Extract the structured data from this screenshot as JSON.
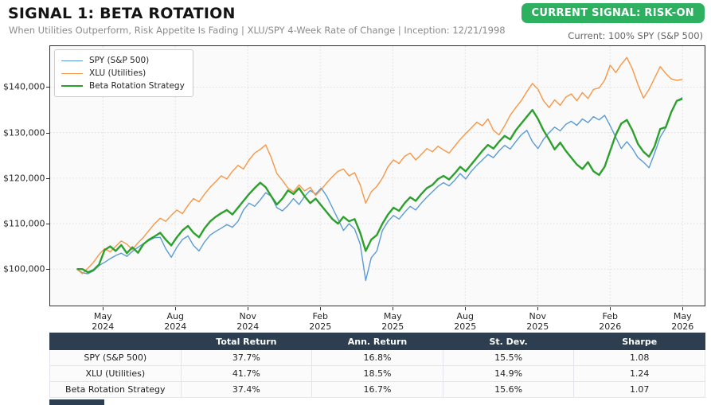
{
  "header": {
    "title": "SIGNAL 1: BETA ROTATION",
    "subtitle": "When Utilities Outperform, Risk Appetite Is Fading | XLU/SPY 4-Week Rate of Change | Inception: 12/21/1998",
    "signal_badge": "CURRENT SIGNAL: RISK-ON",
    "current_allocation": "Current: 100% SPY (S&P 500)",
    "badge_color": "#2db05f"
  },
  "chart_data": {
    "type": "line",
    "title": "",
    "xlabel": "",
    "ylabel": "",
    "x_unit": "weeks",
    "grid": true,
    "legend_position": "upper-left",
    "xlim": [
      -4.8,
      113.0
    ],
    "ylim_thousands": [
      92,
      149
    ],
    "y_ticks": [
      {
        "value": 100,
        "label": "$100,000"
      },
      {
        "value": 110,
        "label": "$110,000"
      },
      {
        "value": 120,
        "label": "$120,000"
      },
      {
        "value": 130,
        "label": "$130,000"
      },
      {
        "value": 140,
        "label": "$140,000"
      }
    ],
    "x_ticks": [
      {
        "week": 4.7,
        "month": "May",
        "year": "2024"
      },
      {
        "week": 17.74,
        "month": "Aug",
        "year": "2024"
      },
      {
        "week": 30.78,
        "month": "Nov",
        "year": "2024"
      },
      {
        "week": 43.82,
        "month": "Feb",
        "year": "2025"
      },
      {
        "week": 56.86,
        "month": "May",
        "year": "2025"
      },
      {
        "week": 69.9,
        "month": "Aug",
        "year": "2025"
      },
      {
        "week": 82.94,
        "month": "Nov",
        "year": "2025"
      },
      {
        "week": 95.98,
        "month": "Feb",
        "year": "2026"
      },
      {
        "week": 109.02,
        "month": "May",
        "year": "2026"
      }
    ],
    "values_unit": "USD_thousands_portfolio_value",
    "series": [
      {
        "name": "SPY (S&P 500)",
        "color": "#5b9bd5",
        "line_width": 1.4,
        "values": [
          100.0,
          99.2,
          99.0,
          99.6,
          100.8,
          101.5,
          102.3,
          103.0,
          103.5,
          102.8,
          103.9,
          104.8,
          105.6,
          106.3,
          106.9,
          107.0,
          104.5,
          102.6,
          104.8,
          106.5,
          107.3,
          105.2,
          104.0,
          106.0,
          107.5,
          108.3,
          109.0,
          109.8,
          109.2,
          110.5,
          113.0,
          114.5,
          113.8,
          115.2,
          116.8,
          116.0,
          113.5,
          112.8,
          114.0,
          115.5,
          114.2,
          116.0,
          117.3,
          116.5,
          117.8,
          116.0,
          113.5,
          111.0,
          108.5,
          110.0,
          108.8,
          105.5,
          97.5,
          102.5,
          104.0,
          108.5,
          110.5,
          111.8,
          111.0,
          112.5,
          113.8,
          113.0,
          114.5,
          115.8,
          117.0,
          118.2,
          119.0,
          118.3,
          119.5,
          121.0,
          119.8,
          121.5,
          122.8,
          124.0,
          125.2,
          124.5,
          126.0,
          127.2,
          126.4,
          128.0,
          129.5,
          130.5,
          128.0,
          126.5,
          128.5,
          130.0,
          131.2,
          130.4,
          131.8,
          132.5,
          131.6,
          133.0,
          132.2,
          133.5,
          132.8,
          133.8,
          131.5,
          129.0,
          126.5,
          128.0,
          126.5,
          124.5,
          123.5,
          122.3,
          125.5,
          129.0,
          131.0,
          134.5,
          137.0,
          137.7
        ]
      },
      {
        "name": "XLU (Utilities)",
        "color": "#f79646",
        "line_width": 1.4,
        "values": [
          100.0,
          99.0,
          100.2,
          101.5,
          103.2,
          104.5,
          103.8,
          105.0,
          106.2,
          105.5,
          104.3,
          105.8,
          107.0,
          108.5,
          110.0,
          111.2,
          110.5,
          111.8,
          113.0,
          112.2,
          114.0,
          115.5,
          114.8,
          116.5,
          118.0,
          119.2,
          120.5,
          119.8,
          121.5,
          122.8,
          122.0,
          124.0,
          125.5,
          126.3,
          127.3,
          124.5,
          121.0,
          119.5,
          117.8,
          117.0,
          118.5,
          117.2,
          118.0,
          116.2,
          117.5,
          119.0,
          120.3,
          121.5,
          122.0,
          120.5,
          121.2,
          118.5,
          114.5,
          117.0,
          118.2,
          120.0,
          122.5,
          124.0,
          123.2,
          124.8,
          125.5,
          124.0,
          125.2,
          126.5,
          125.8,
          127.0,
          126.2,
          125.5,
          127.0,
          128.5,
          129.8,
          131.0,
          132.3,
          131.5,
          133.0,
          130.5,
          129.5,
          131.5,
          133.8,
          135.5,
          137.0,
          139.0,
          140.8,
          139.5,
          137.0,
          135.5,
          137.2,
          136.0,
          137.8,
          138.5,
          137.0,
          138.8,
          137.5,
          139.5,
          139.8,
          141.5,
          144.8,
          143.2,
          145.0,
          146.5,
          144.0,
          140.5,
          137.6,
          139.5,
          142.0,
          144.5,
          143.0,
          141.8,
          141.5,
          141.7
        ]
      },
      {
        "name": "Beta Rotation Strategy",
        "color": "#2ca02c",
        "line_width": 2.4,
        "values": [
          100.0,
          100.0,
          99.3,
          99.8,
          101.0,
          104.2,
          105.0,
          104.0,
          105.3,
          103.5,
          104.8,
          103.6,
          105.5,
          106.5,
          107.2,
          108.0,
          106.5,
          105.2,
          107.0,
          108.5,
          109.5,
          108.0,
          107.0,
          109.0,
          110.5,
          111.5,
          112.3,
          113.0,
          112.0,
          113.5,
          115.0,
          116.5,
          117.8,
          119.0,
          118.0,
          116.0,
          114.2,
          115.5,
          117.3,
          116.5,
          117.8,
          116.0,
          114.5,
          115.5,
          114.0,
          112.5,
          111.0,
          110.0,
          111.5,
          110.5,
          111.0,
          108.0,
          104.0,
          106.5,
          107.5,
          110.0,
          112.0,
          113.5,
          112.8,
          114.5,
          115.8,
          115.0,
          116.5,
          117.8,
          118.5,
          119.8,
          120.5,
          119.7,
          121.0,
          122.5,
          121.5,
          123.0,
          124.5,
          126.0,
          127.3,
          126.5,
          128.0,
          129.3,
          128.5,
          130.5,
          132.0,
          133.5,
          135.0,
          133.0,
          130.5,
          128.5,
          126.3,
          127.8,
          126.0,
          124.5,
          123.0,
          122.0,
          123.5,
          121.5,
          120.7,
          122.5,
          126.0,
          129.5,
          132.0,
          132.8,
          130.5,
          127.5,
          125.8,
          124.7,
          127.0,
          130.8,
          131.2,
          134.5,
          137.0,
          137.4
        ]
      }
    ]
  },
  "table": {
    "columns": [
      "",
      "Total Return",
      "Ann. Return",
      "St. Dev.",
      "Sharpe"
    ],
    "rows": [
      {
        "label": "SPY (S&P 500)",
        "values": [
          "37.7%",
          "16.8%",
          "15.5%",
          "1.08"
        ]
      },
      {
        "label": "XLU (Utilities)",
        "values": [
          "41.7%",
          "18.5%",
          "14.9%",
          "1.24"
        ]
      },
      {
        "label": "Beta Rotation Strategy",
        "values": [
          "37.4%",
          "16.7%",
          "15.6%",
          "1.07"
        ]
      }
    ]
  }
}
